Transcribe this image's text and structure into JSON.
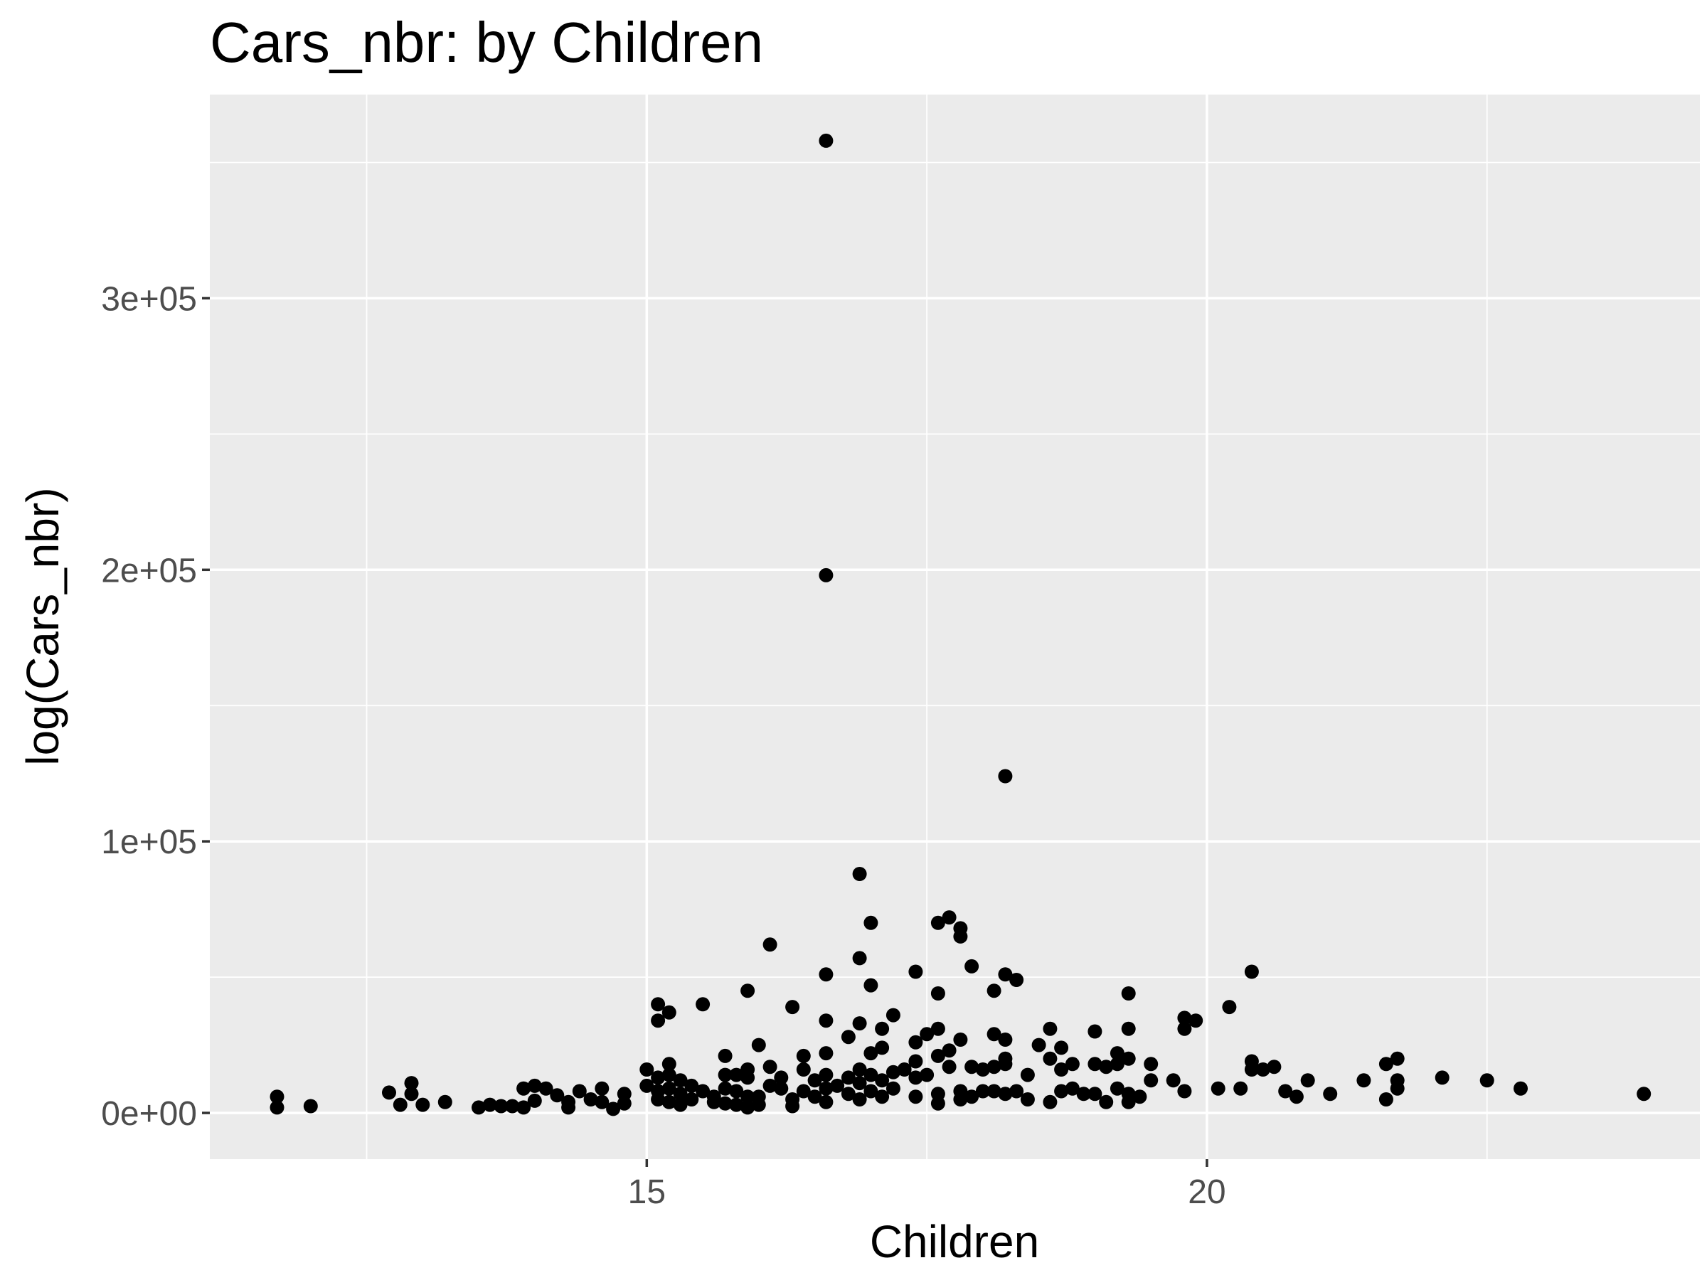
{
  "chart_data": {
    "type": "scatter",
    "title": "Cars_nbr: by Children",
    "xlabel": "Children",
    "ylabel": "log(Cars_nbr)",
    "xlim": [
      11.1,
      24.4
    ],
    "ylim": [
      -17000,
      375000
    ],
    "x_ticks": [
      15,
      20
    ],
    "x_tick_labels": [
      "15",
      "20"
    ],
    "x_minor_ticks": [
      12.5,
      17.5,
      22.5
    ],
    "y_ticks": [
      0,
      100000,
      200000,
      300000
    ],
    "y_tick_labels": [
      "0e+00",
      "1e+05",
      "2e+05",
      "3e+05"
    ],
    "y_minor_ticks": [
      50000,
      150000,
      250000,
      350000
    ],
    "grid": true,
    "panel_color": "#ebebeb",
    "grid_color": "#ffffff",
    "point_color": "#000000",
    "points": [
      [
        11.7,
        6000
      ],
      [
        11.7,
        2000
      ],
      [
        12.0,
        2500
      ],
      [
        12.7,
        7500
      ],
      [
        12.8,
        3000
      ],
      [
        12.9,
        7000
      ],
      [
        12.9,
        11000
      ],
      [
        13.0,
        3000
      ],
      [
        13.2,
        4000
      ],
      [
        13.5,
        2000
      ],
      [
        13.6,
        3000
      ],
      [
        13.7,
        2500
      ],
      [
        13.8,
        2500
      ],
      [
        13.9,
        2000
      ],
      [
        13.9,
        9000
      ],
      [
        14.0,
        10000
      ],
      [
        14.0,
        4500
      ],
      [
        14.1,
        9000
      ],
      [
        14.2,
        6500
      ],
      [
        14.3,
        2000
      ],
      [
        14.3,
        4000
      ],
      [
        14.4,
        8000
      ],
      [
        14.5,
        5000
      ],
      [
        14.6,
        9000
      ],
      [
        14.6,
        4000
      ],
      [
        14.7,
        1500
      ],
      [
        14.8,
        7000
      ],
      [
        14.8,
        3500
      ],
      [
        15.0,
        16000
      ],
      [
        15.0,
        10000
      ],
      [
        15.1,
        40000
      ],
      [
        15.1,
        34000
      ],
      [
        15.1,
        13000
      ],
      [
        15.1,
        8000
      ],
      [
        15.1,
        5000
      ],
      [
        15.2,
        37000
      ],
      [
        15.2,
        18000
      ],
      [
        15.2,
        14000
      ],
      [
        15.2,
        9000
      ],
      [
        15.2,
        4000
      ],
      [
        15.3,
        12000
      ],
      [
        15.3,
        7000
      ],
      [
        15.3,
        3000
      ],
      [
        15.4,
        10000
      ],
      [
        15.4,
        5000
      ],
      [
        15.5,
        40000
      ],
      [
        15.5,
        8000
      ],
      [
        15.6,
        6000
      ],
      [
        15.6,
        4000
      ],
      [
        15.7,
        21000
      ],
      [
        15.7,
        14000
      ],
      [
        15.7,
        9000
      ],
      [
        15.7,
        3500
      ],
      [
        15.8,
        14000
      ],
      [
        15.8,
        8000
      ],
      [
        15.8,
        3000
      ],
      [
        15.9,
        45000
      ],
      [
        15.9,
        16000
      ],
      [
        15.9,
        13000
      ],
      [
        15.9,
        6000
      ],
      [
        15.9,
        2000
      ],
      [
        16.0,
        25000
      ],
      [
        16.0,
        6000
      ],
      [
        16.0,
        3000
      ],
      [
        16.1,
        62000
      ],
      [
        16.1,
        17000
      ],
      [
        16.1,
        10000
      ],
      [
        16.2,
        13000
      ],
      [
        16.2,
        9000
      ],
      [
        16.3,
        39000
      ],
      [
        16.3,
        5000
      ],
      [
        16.3,
        2500
      ],
      [
        16.4,
        21000
      ],
      [
        16.4,
        16000
      ],
      [
        16.4,
        8000
      ],
      [
        16.5,
        12000
      ],
      [
        16.5,
        6000
      ],
      [
        16.6,
        358000
      ],
      [
        16.6,
        198000
      ],
      [
        16.6,
        51000
      ],
      [
        16.6,
        34000
      ],
      [
        16.6,
        22000
      ],
      [
        16.6,
        14000
      ],
      [
        16.6,
        9000
      ],
      [
        16.6,
        4000
      ],
      [
        16.7,
        10000
      ],
      [
        16.8,
        28000
      ],
      [
        16.8,
        13000
      ],
      [
        16.8,
        7000
      ],
      [
        16.9,
        88000
      ],
      [
        16.9,
        57000
      ],
      [
        16.9,
        33000
      ],
      [
        16.9,
        16000
      ],
      [
        16.9,
        11000
      ],
      [
        16.9,
        5000
      ],
      [
        17.0,
        70000
      ],
      [
        17.0,
        47000
      ],
      [
        17.0,
        22000
      ],
      [
        17.0,
        14000
      ],
      [
        17.0,
        8000
      ],
      [
        17.1,
        31000
      ],
      [
        17.1,
        24000
      ],
      [
        17.1,
        12000
      ],
      [
        17.1,
        6000
      ],
      [
        17.2,
        36000
      ],
      [
        17.2,
        15000
      ],
      [
        17.2,
        9000
      ],
      [
        17.3,
        16000
      ],
      [
        17.4,
        52000
      ],
      [
        17.4,
        26000
      ],
      [
        17.4,
        19000
      ],
      [
        17.4,
        13000
      ],
      [
        17.4,
        6000
      ],
      [
        17.5,
        29000
      ],
      [
        17.5,
        14000
      ],
      [
        17.6,
        70000
      ],
      [
        17.6,
        44000
      ],
      [
        17.6,
        31000
      ],
      [
        17.6,
        21000
      ],
      [
        17.6,
        7000
      ],
      [
        17.6,
        3500
      ],
      [
        17.7,
        72000
      ],
      [
        17.7,
        23000
      ],
      [
        17.7,
        17000
      ],
      [
        17.8,
        68000
      ],
      [
        17.8,
        65000
      ],
      [
        17.8,
        27000
      ],
      [
        17.8,
        8000
      ],
      [
        17.8,
        5000
      ],
      [
        17.9,
        54000
      ],
      [
        17.9,
        17000
      ],
      [
        17.9,
        6000
      ],
      [
        18.0,
        16000
      ],
      [
        18.0,
        8000
      ],
      [
        18.1,
        45000
      ],
      [
        18.1,
        29000
      ],
      [
        18.1,
        17000
      ],
      [
        18.1,
        8000
      ],
      [
        18.2,
        124000
      ],
      [
        18.2,
        51000
      ],
      [
        18.2,
        27000
      ],
      [
        18.2,
        20000
      ],
      [
        18.2,
        18000
      ],
      [
        18.2,
        7000
      ],
      [
        18.3,
        49000
      ],
      [
        18.3,
        8000
      ],
      [
        18.4,
        14000
      ],
      [
        18.4,
        5000
      ],
      [
        18.5,
        25000
      ],
      [
        18.6,
        31000
      ],
      [
        18.6,
        20000
      ],
      [
        18.6,
        4000
      ],
      [
        18.7,
        24000
      ],
      [
        18.7,
        16000
      ],
      [
        18.7,
        8000
      ],
      [
        18.8,
        18000
      ],
      [
        18.8,
        9000
      ],
      [
        18.9,
        7000
      ],
      [
        19.0,
        30000
      ],
      [
        19.0,
        18000
      ],
      [
        19.0,
        7000
      ],
      [
        19.1,
        17000
      ],
      [
        19.1,
        4000
      ],
      [
        19.2,
        22000
      ],
      [
        19.2,
        18000
      ],
      [
        19.2,
        9000
      ],
      [
        19.3,
        44000
      ],
      [
        19.3,
        31000
      ],
      [
        19.3,
        20000
      ],
      [
        19.3,
        7000
      ],
      [
        19.3,
        4000
      ],
      [
        19.4,
        6000
      ],
      [
        19.5,
        18000
      ],
      [
        19.5,
        12000
      ],
      [
        19.7,
        12000
      ],
      [
        19.8,
        35000
      ],
      [
        19.8,
        31000
      ],
      [
        19.8,
        8000
      ],
      [
        19.9,
        34000
      ],
      [
        20.1,
        9000
      ],
      [
        20.2,
        39000
      ],
      [
        20.3,
        9000
      ],
      [
        20.4,
        52000
      ],
      [
        20.4,
        19000
      ],
      [
        20.4,
        16000
      ],
      [
        20.5,
        16000
      ],
      [
        20.6,
        17000
      ],
      [
        20.7,
        8000
      ],
      [
        20.8,
        6000
      ],
      [
        20.9,
        12000
      ],
      [
        21.1,
        7000
      ],
      [
        21.4,
        12000
      ],
      [
        21.6,
        18000
      ],
      [
        21.6,
        5000
      ],
      [
        21.7,
        20000
      ],
      [
        21.7,
        12000
      ],
      [
        21.7,
        9000
      ],
      [
        22.1,
        13000
      ],
      [
        22.5,
        12000
      ],
      [
        22.8,
        9000
      ],
      [
        23.9,
        7000
      ]
    ]
  }
}
